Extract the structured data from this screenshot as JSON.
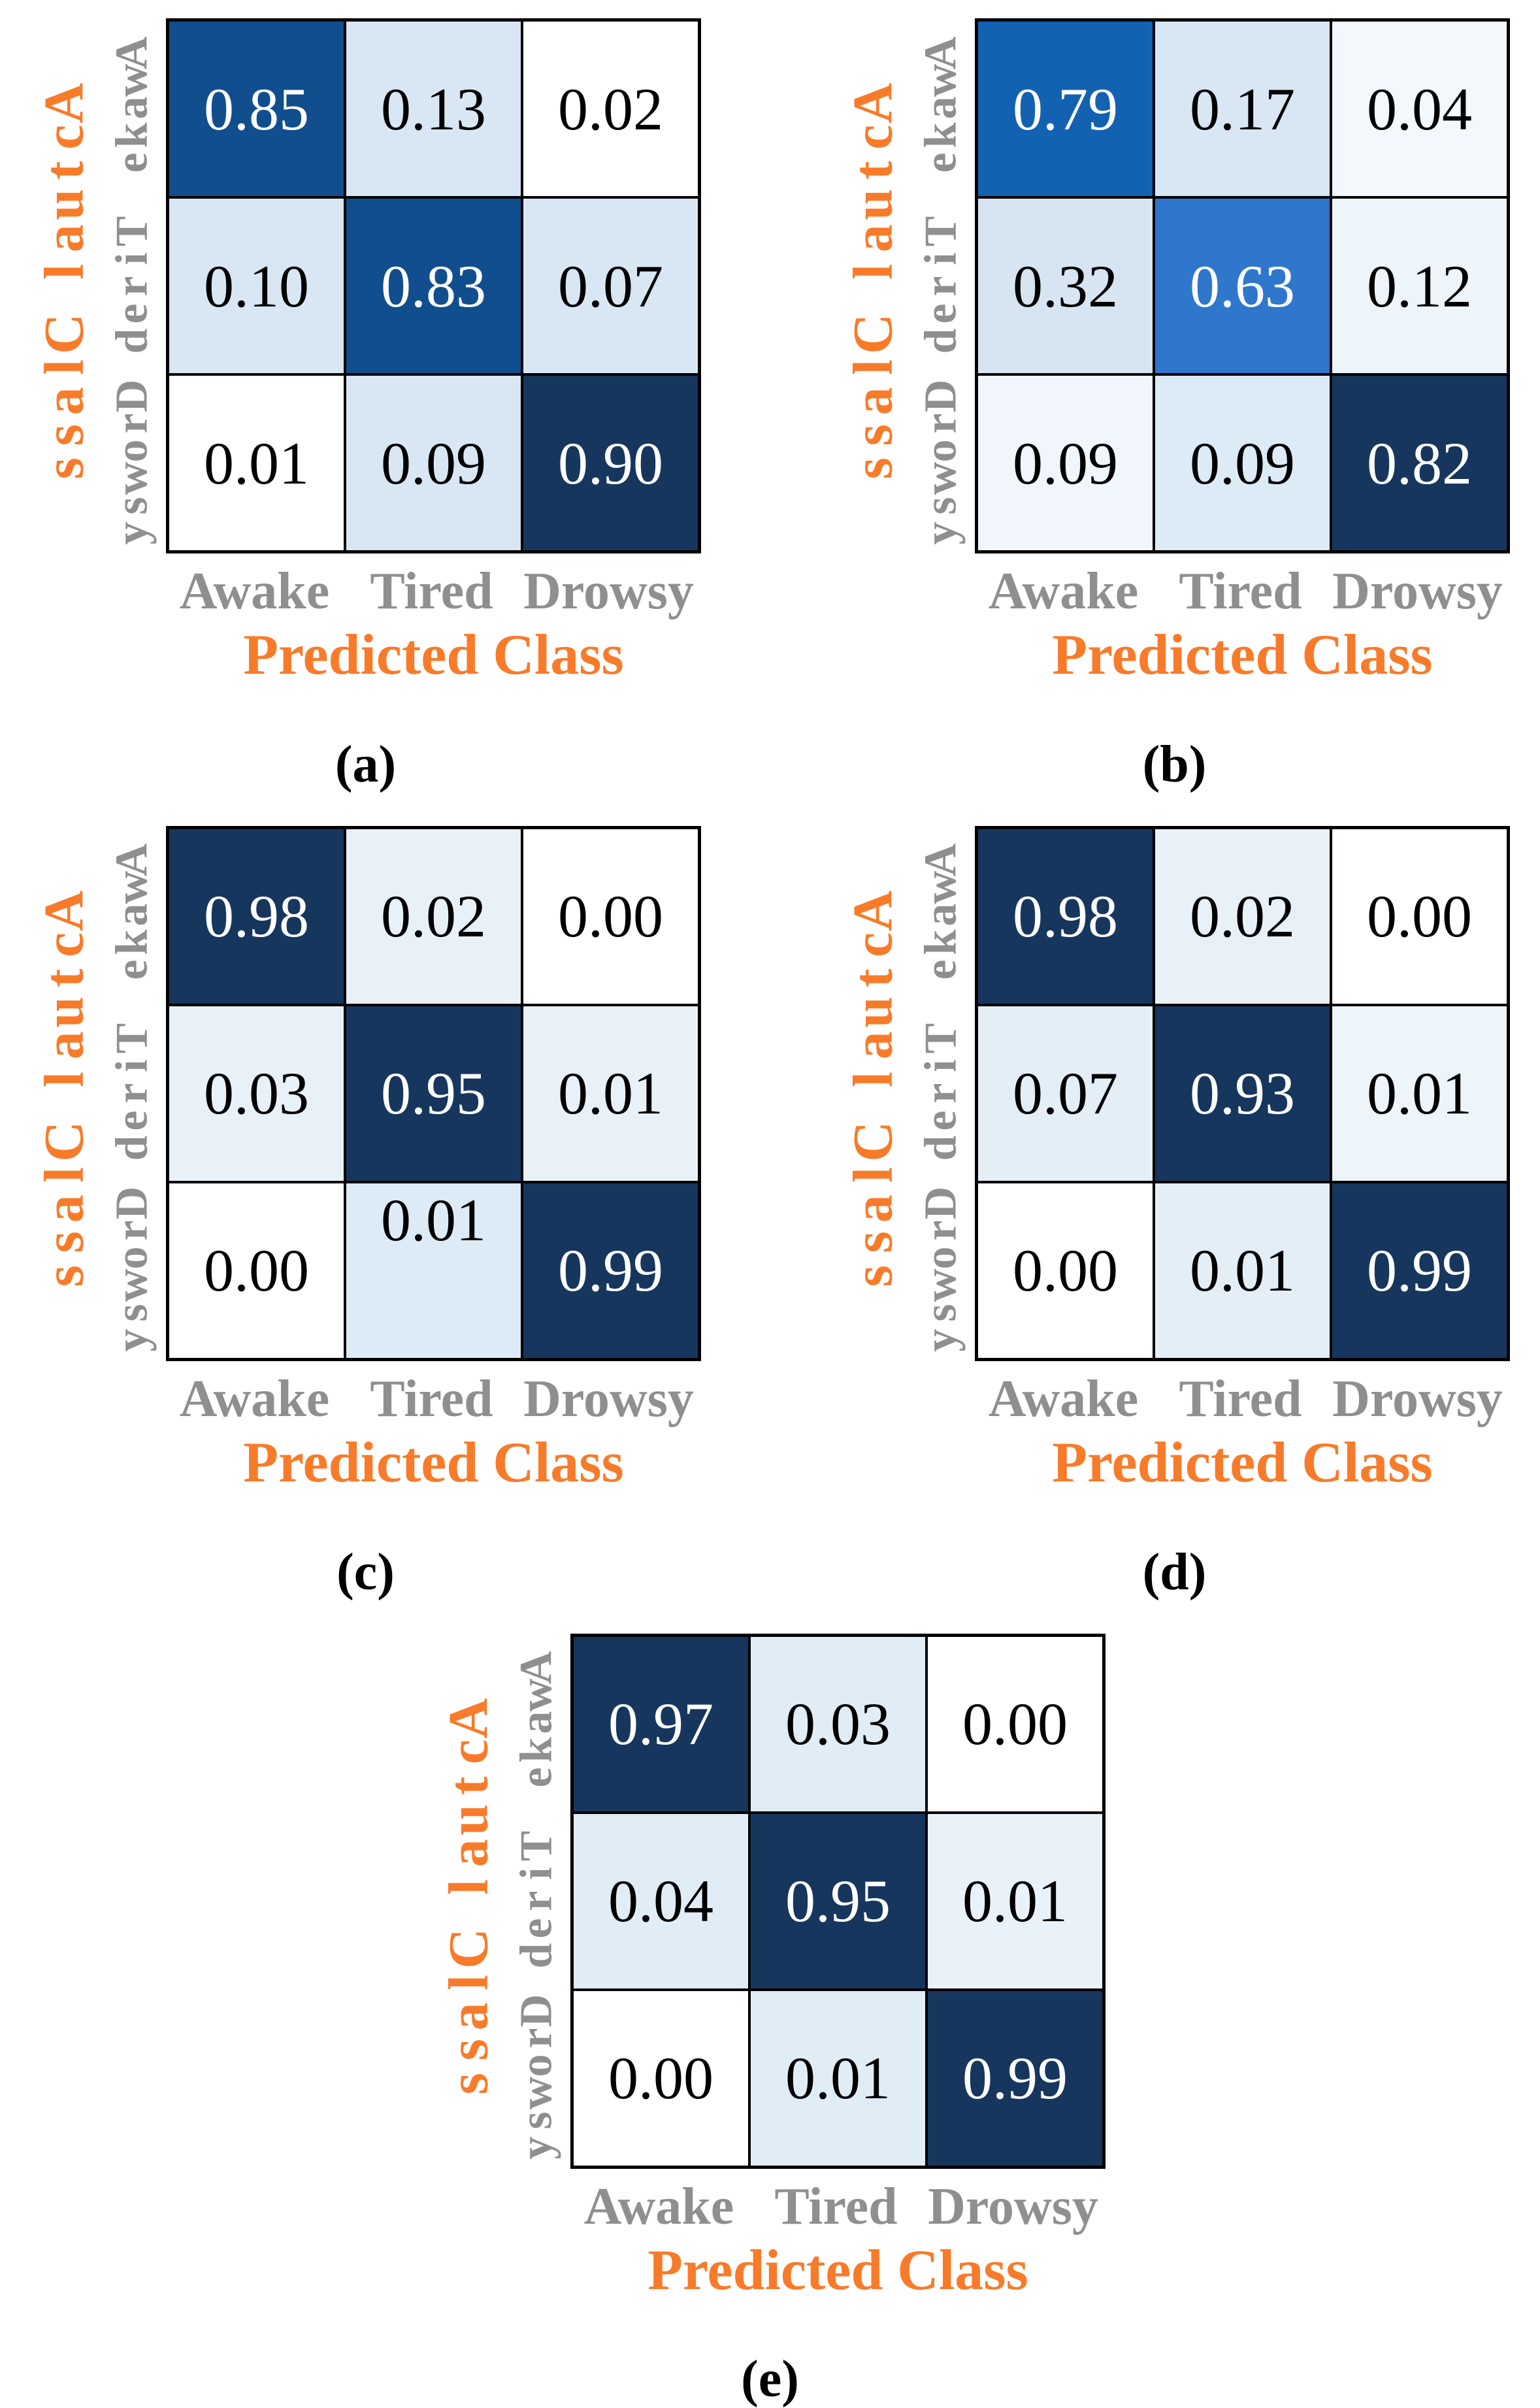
{
  "colors": {
    "orange": "#f87b2a",
    "gray": "#8f8f8f",
    "grid_line": "#000000",
    "background": "#ffffff",
    "navy_max": "#17365e",
    "light_blue": "#d9e7f4",
    "white_min": "#ffffff"
  },
  "axis_labels": {
    "y": "Actual Class",
    "x": "Predicted Class"
  },
  "classes": [
    "Awake",
    "Tired",
    "Drowsy"
  ],
  "chart_data": [
    {
      "type": "heatmap",
      "label": "(a)",
      "rows": [
        "Awake",
        "Tired",
        "Drowsy"
      ],
      "cols": [
        "Awake",
        "Tired",
        "Drowsy"
      ],
      "xlabel": "Predicted Class",
      "ylabel": "Actual Class",
      "values": [
        [
          0.85,
          0.13,
          0.02
        ],
        [
          0.1,
          0.83,
          0.07
        ],
        [
          0.01,
          0.09,
          0.9
        ]
      ],
      "cell_colors": [
        [
          "#114e8d",
          "#d9e7f4",
          "#ffffff"
        ],
        [
          "#d9e7f4",
          "#114e8d",
          "#d9e7f4"
        ],
        [
          "#ffffff",
          "#d9e7f4",
          "#17365e"
        ]
      ]
    },
    {
      "type": "heatmap",
      "label": "(b)",
      "rows": [
        "Awake",
        "Tired",
        "Drowsy"
      ],
      "cols": [
        "Awake",
        "Tired",
        "Drowsy"
      ],
      "xlabel": "Predicted Class",
      "ylabel": "Actual Class",
      "values": [
        [
          0.79,
          0.17,
          0.04
        ],
        [
          0.32,
          0.63,
          0.12
        ],
        [
          0.09,
          0.09,
          0.82
        ]
      ],
      "cell_colors": [
        [
          "#1362b2",
          "#d9e7f4",
          "#f3f8fc"
        ],
        [
          "#d7e5f2",
          "#2e77cc",
          "#edf4fa"
        ],
        [
          "#f0f6fb",
          "#dcebf5",
          "#17365e"
        ]
      ]
    },
    {
      "type": "heatmap",
      "label": "(c)",
      "rows": [
        "Awake",
        "Tired",
        "Drowsy"
      ],
      "cols": [
        "Awake",
        "Tired",
        "Drowsy"
      ],
      "xlabel": "Predicted Class",
      "ylabel": "Actual Class",
      "values": [
        [
          0.98,
          0.02,
          0.0
        ],
        [
          0.03,
          0.95,
          0.01
        ],
        [
          0.0,
          0.01,
          0.99
        ]
      ],
      "cell_colors": [
        [
          "#17365e",
          "#e9f1f8",
          "#ffffff"
        ],
        [
          "#e9f1f8",
          "#17365e",
          "#e9f1f8"
        ],
        [
          "#ffffff",
          "#dcebf5",
          "#17365e"
        ]
      ],
      "top_aligned_cells": [
        [
          2,
          1
        ]
      ]
    },
    {
      "type": "heatmap",
      "label": "(d)",
      "rows": [
        "Awake",
        "Tired",
        "Drowsy"
      ],
      "cols": [
        "Awake",
        "Tired",
        "Drowsy"
      ],
      "xlabel": "Predicted Class",
      "ylabel": "Actual Class",
      "values": [
        [
          0.98,
          0.02,
          0.0
        ],
        [
          0.07,
          0.93,
          0.01
        ],
        [
          0.0,
          0.01,
          0.99
        ]
      ],
      "cell_colors": [
        [
          "#17365e",
          "#e9f1f8",
          "#ffffff"
        ],
        [
          "#e4eef7",
          "#17365e",
          "#eef5fa"
        ],
        [
          "#ffffff",
          "#e4eef7",
          "#17365e"
        ]
      ]
    },
    {
      "type": "heatmap",
      "label": "(e)",
      "rows": [
        "Awake",
        "Tired",
        "Drowsy"
      ],
      "cols": [
        "Awake",
        "Tired",
        "Drowsy"
      ],
      "xlabel": "Predicted Class",
      "ylabel": "Actual Class",
      "values": [
        [
          0.97,
          0.03,
          0.0
        ],
        [
          0.04,
          0.95,
          0.01
        ],
        [
          0.0,
          0.01,
          0.99
        ]
      ],
      "cell_colors": [
        [
          "#17365e",
          "#e1edf6",
          "#ffffff"
        ],
        [
          "#e1edf6",
          "#17365e",
          "#eaf2f9"
        ],
        [
          "#ffffff",
          "#e1edf6",
          "#17365e"
        ]
      ]
    }
  ]
}
